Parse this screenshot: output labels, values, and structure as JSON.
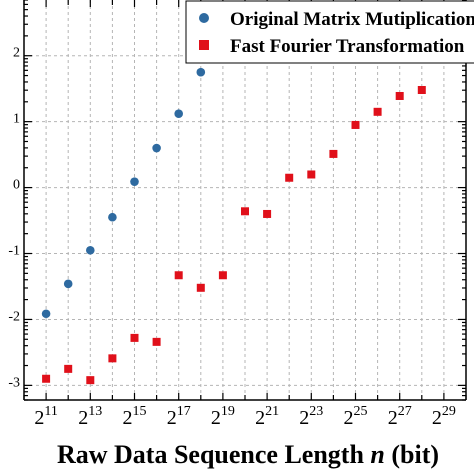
{
  "chart_data": {
    "type": "scatter",
    "title": "",
    "xlabel": {
      "prefix": "Raw Data Sequence Length ",
      "variable": "n",
      "suffix": " (bit)"
    },
    "ylabel": "",
    "x_scale": "log2",
    "y_scale": "log10",
    "xlim": [
      1024,
      1073741824
    ],
    "ylim": [
      0.0006,
      700
    ],
    "grid": true,
    "legend_position": "top-right",
    "x_tick_labels": [
      {
        "base": "2",
        "exp": "11"
      },
      {
        "base": "2",
        "exp": "13"
      },
      {
        "base": "2",
        "exp": "15"
      },
      {
        "base": "2",
        "exp": "17"
      },
      {
        "base": "2",
        "exp": "19"
      },
      {
        "base": "2",
        "exp": "21"
      },
      {
        "base": "2",
        "exp": "23"
      },
      {
        "base": "2",
        "exp": "25"
      },
      {
        "base": "2",
        "exp": "27"
      },
      {
        "base": "2",
        "exp": "29"
      }
    ],
    "x_ticks": [
      2048,
      8192,
      32768,
      131072,
      524288,
      2097152,
      8388608,
      33554432,
      134217728,
      536870912
    ],
    "y_tick_labels": [
      {
        "base": "",
        "exp": "2"
      },
      {
        "base": "",
        "exp": "1"
      },
      {
        "base": "",
        "exp": "0"
      },
      {
        "base": "",
        "exp": "-1"
      },
      {
        "base": "",
        "exp": "-2"
      },
      {
        "base": "",
        "exp": "-3"
      }
    ],
    "y_ticks": [
      100,
      10,
      1,
      0.1,
      0.01,
      0.001
    ],
    "series": [
      {
        "name": "Original Matrix Mutiplication",
        "marker": "circle",
        "color": "#2e6aa0",
        "x": [
          2048,
          4096,
          8192,
          16384,
          32768,
          65536,
          131072,
          262144
        ],
        "y": [
          0.0122,
          0.0347,
          0.112,
          0.355,
          1.23,
          3.98,
          13.2,
          56.2
        ]
      },
      {
        "name": "Fast Fourier Transformation",
        "marker": "square",
        "color": "#e0101a",
        "x": [
          2048,
          4096,
          8192,
          16384,
          32768,
          65536,
          131072,
          262144,
          524288,
          1048576,
          2097152,
          4194304,
          8388608,
          16777216,
          33554432,
          67108864,
          134217728,
          268435456
        ],
        "y": [
          0.00126,
          0.00178,
          0.0012,
          0.00257,
          0.00525,
          0.00457,
          0.0468,
          0.0302,
          0.0468,
          0.437,
          0.398,
          1.41,
          1.58,
          3.24,
          8.91,
          14.1,
          24.5,
          30.2
        ]
      }
    ]
  }
}
